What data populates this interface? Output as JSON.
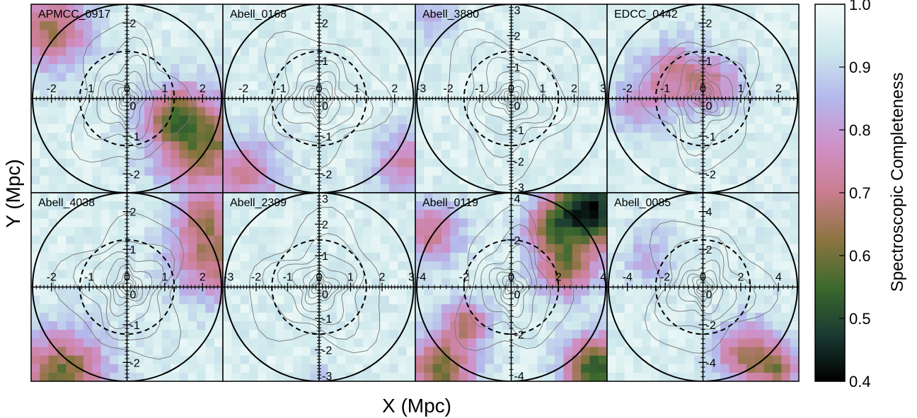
{
  "chart_data": {
    "type": "heatmap",
    "xlabel": "X (Mpc)",
    "ylabel": "Y (Mpc)",
    "colorbar": {
      "label": "Spectroscopic Completeness",
      "range": [
        0.4,
        1.0
      ],
      "ticks": [
        "1.0",
        "0.9",
        "0.8",
        "0.7",
        "0.6",
        "0.5",
        "0.4"
      ],
      "tick_values": [
        1.0,
        0.9,
        0.8,
        0.7,
        0.6,
        0.5,
        0.4
      ],
      "colors": [
        "#000000",
        "#1a3a32",
        "#3d6a2e",
        "#8c7440",
        "#c97d8e",
        "#cf90c8",
        "#b4b8ec",
        "#cde8ec",
        "#f2fbf8"
      ]
    },
    "panels": [
      {
        "name": "APMCC_0917",
        "half_extent": 2.5,
        "x_ticks": [
          "-2",
          "-1",
          "0",
          "1",
          "2"
        ],
        "x_tick_values": [
          -2,
          -1,
          0,
          1,
          2
        ],
        "y_ticks": [
          "2",
          "0",
          "-1",
          "-2"
        ],
        "y_tick_values": [
          2,
          0,
          -1,
          -2
        ],
        "r_dashed": 1.25,
        "completeness_low": [
          {
            "x": -2.0,
            "y": 1.8,
            "r": 0.7,
            "depth": 0.3
          },
          {
            "x": 2.0,
            "y": -1.2,
            "r": 0.9,
            "depth": 0.35
          },
          {
            "x": 1.2,
            "y": -0.4,
            "r": 0.5,
            "depth": 0.22
          }
        ]
      },
      {
        "name": "Abell_0168",
        "half_extent": 2.5,
        "x_ticks": [
          "-2",
          "-1",
          "0",
          "1",
          "2"
        ],
        "x_tick_values": [
          -2,
          -1,
          0,
          1,
          2
        ],
        "y_ticks": [
          "2",
          "1",
          "0",
          "-1",
          "-2"
        ],
        "y_tick_values": [
          2,
          1,
          0,
          -1,
          -2
        ],
        "r_dashed": 1.25,
        "completeness_low": [
          {
            "x": -2.0,
            "y": -2.0,
            "r": 0.7,
            "depth": 0.22
          },
          {
            "x": 2.3,
            "y": -1.7,
            "r": 0.6,
            "depth": 0.2
          }
        ]
      },
      {
        "name": "Abell_3880",
        "half_extent": 3.0,
        "x_ticks": [
          "-3",
          "-2",
          "-1",
          "0",
          "1",
          "2",
          "3"
        ],
        "x_tick_values": [
          -3,
          -2,
          -1,
          0,
          1,
          2,
          3
        ],
        "y_ticks": [
          "3",
          "2",
          "1",
          "0",
          "-1",
          "-2",
          "-3"
        ],
        "y_tick_values": [
          3,
          2,
          1,
          0,
          -1,
          -2,
          -3
        ],
        "r_dashed": 1.5,
        "completeness_low": [
          {
            "x": -2.5,
            "y": 2.6,
            "r": 0.5,
            "depth": 0.12
          }
        ]
      },
      {
        "name": "EDCC_0442",
        "half_extent": 2.5,
        "x_ticks": [
          "-2",
          "-1",
          "0",
          "1",
          "2"
        ],
        "x_tick_values": [
          -2,
          -1,
          0,
          1,
          2
        ],
        "y_ticks": [
          "2",
          "1",
          "0",
          "-1",
          "-2"
        ],
        "y_tick_values": [
          2,
          1,
          0,
          -1,
          -2
        ],
        "r_dashed": 1.25,
        "completeness_low": [
          {
            "x": -0.8,
            "y": 0.6,
            "r": 0.6,
            "depth": 0.22
          },
          {
            "x": 0.3,
            "y": 0.4,
            "r": 0.5,
            "depth": 0.2
          },
          {
            "x": -1.8,
            "y": -0.2,
            "r": 0.5,
            "depth": 0.15
          }
        ]
      },
      {
        "name": "Abell_4038",
        "half_extent": 2.5,
        "x_ticks": [
          "-2",
          "-1",
          "0",
          "1",
          "2"
        ],
        "x_tick_values": [
          -2,
          -1,
          0,
          1,
          2
        ],
        "y_ticks": [
          "2",
          "1",
          "0",
          "-1",
          "-2"
        ],
        "y_tick_values": [
          2,
          1,
          0,
          -1,
          -2
        ],
        "r_dashed": 1.25,
        "completeness_low": [
          {
            "x": -1.7,
            "y": -2.3,
            "r": 0.8,
            "depth": 0.35
          },
          {
            "x": 2.3,
            "y": 0.8,
            "r": 0.8,
            "depth": 0.28
          },
          {
            "x": 2.0,
            "y": 2.0,
            "r": 0.5,
            "depth": 0.2
          }
        ]
      },
      {
        "name": "Abell_2399",
        "half_extent": 3.0,
        "x_ticks": [
          "-3",
          "-2",
          "-1",
          "0",
          "1",
          "2",
          "3"
        ],
        "x_tick_values": [
          -3,
          -2,
          -1,
          0,
          1,
          2,
          3
        ],
        "y_ticks": [
          "3",
          "2",
          "1",
          "0",
          "-1",
          "-2",
          "-3"
        ],
        "y_tick_values": [
          3,
          2,
          1,
          0,
          -1,
          -2,
          -3
        ],
        "r_dashed": 1.5,
        "completeness_low": [
          {
            "x": 0.0,
            "y": -2.8,
            "r": 0.4,
            "depth": 0.06
          }
        ]
      },
      {
        "name": "Abell_0119",
        "half_extent": 4.0,
        "x_ticks": [
          "-4",
          "-2",
          "0",
          "2",
          "4"
        ],
        "x_tick_values": [
          -4,
          -2,
          0,
          2,
          4
        ],
        "y_ticks": [
          "4",
          "2",
          "0",
          "-2",
          "-4"
        ],
        "y_tick_values": [
          4,
          2,
          0,
          -2,
          -4
        ],
        "r_dashed": 2.0,
        "completeness_low": [
          {
            "x": 3.3,
            "y": 3.3,
            "r": 1.1,
            "depth": 0.55
          },
          {
            "x": 3.6,
            "y": -3.4,
            "r": 0.9,
            "depth": 0.45
          },
          {
            "x": 2.3,
            "y": 0.8,
            "r": 0.9,
            "depth": 0.3
          },
          {
            "x": -1.9,
            "y": -1.5,
            "r": 0.7,
            "depth": 0.25
          },
          {
            "x": -3.4,
            "y": 2.3,
            "r": 0.9,
            "depth": 0.25
          },
          {
            "x": -3.0,
            "y": -3.5,
            "r": 1.0,
            "depth": 0.35
          },
          {
            "x": 1.5,
            "y": 2.5,
            "r": 0.7,
            "depth": 0.22
          }
        ]
      },
      {
        "name": "Abell_0085",
        "half_extent": 5.0,
        "x_ticks": [
          "-4",
          "-2",
          "0",
          "2",
          "4"
        ],
        "x_tick_values": [
          -4,
          -2,
          0,
          2,
          4
        ],
        "y_ticks": [
          "4",
          "2",
          "0",
          "-2",
          "-4"
        ],
        "y_tick_values": [
          4,
          2,
          0,
          -2,
          -4
        ],
        "r_dashed": 2.5,
        "completeness_low": [
          {
            "x": 2.3,
            "y": -3.6,
            "r": 1.2,
            "depth": 0.28
          },
          {
            "x": 4.0,
            "y": -4.3,
            "r": 0.8,
            "depth": 0.25
          },
          {
            "x": -2.8,
            "y": 1.6,
            "r": 1.0,
            "depth": 0.12
          }
        ]
      }
    ]
  }
}
